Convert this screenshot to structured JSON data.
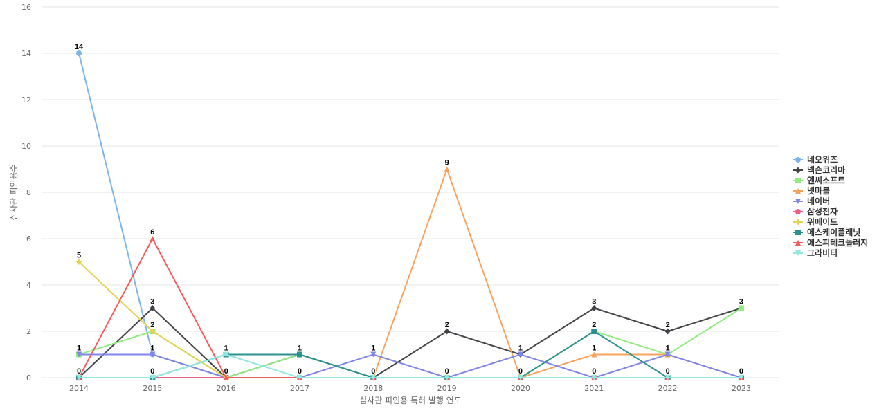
{
  "chart_data": {
    "type": "line",
    "xlabel": "심사관 피인용 특허 발행 연도",
    "ylabel": "심사관 피인용수",
    "categories": [
      "2014",
      "2015",
      "2016",
      "2017",
      "2018",
      "2019",
      "2020",
      "2021",
      "2022",
      "2023"
    ],
    "ylim": [
      0,
      16
    ],
    "yticks": [
      0,
      2,
      4,
      6,
      8,
      10,
      12,
      14,
      16
    ],
    "grid": true,
    "legend_position": "right",
    "series": [
      {
        "name": "네오위즈",
        "color": "#7cb5ec",
        "marker": "circle",
        "values": [
          14,
          1,
          0,
          0,
          0,
          0,
          0,
          0,
          0,
          0
        ]
      },
      {
        "name": "넥슨코리아",
        "color": "#434348",
        "marker": "diamond",
        "values": [
          0,
          3,
          0,
          1,
          0,
          2,
          1,
          3,
          2,
          3
        ]
      },
      {
        "name": "엔씨소프트",
        "color": "#90ed7d",
        "marker": "square",
        "values": [
          1,
          2,
          0,
          1,
          0,
          0,
          0,
          2,
          1,
          3
        ]
      },
      {
        "name": "넷마블",
        "color": "#f7a35c",
        "marker": "triangle",
        "values": [
          0,
          0,
          0,
          0,
          0,
          9,
          0,
          1,
          1,
          0
        ]
      },
      {
        "name": "네이버",
        "color": "#8085e9",
        "marker": "triangle-down",
        "values": [
          1,
          1,
          0,
          0,
          1,
          0,
          1,
          0,
          1,
          0
        ]
      },
      {
        "name": "삼성전자",
        "color": "#f15c80",
        "marker": "circle",
        "values": [
          0,
          0,
          0,
          0,
          0,
          0,
          0,
          0,
          0,
          0
        ]
      },
      {
        "name": "위메이드",
        "color": "#e4d354",
        "marker": "diamond",
        "values": [
          5,
          2,
          0,
          0,
          0,
          0,
          0,
          0,
          0,
          0
        ]
      },
      {
        "name": "에스케이플래닛",
        "color": "#2b908f",
        "marker": "square",
        "values": [
          0,
          0,
          1,
          1,
          0,
          0,
          0,
          2,
          0,
          0
        ]
      },
      {
        "name": "에스피테크놀러지",
        "color": "#f45b5b",
        "marker": "triangle",
        "values": [
          0,
          6,
          0,
          0,
          0,
          0,
          0,
          0,
          0,
          0
        ]
      },
      {
        "name": "그라비티",
        "color": "#91e8e1",
        "marker": "triangle-down",
        "values": [
          0,
          0,
          1,
          0,
          0,
          0,
          0,
          0,
          0,
          0
        ]
      }
    ],
    "data_labels": [
      {
        "x": "2014",
        "y": 14,
        "text": "14"
      },
      {
        "x": "2014",
        "y": 5,
        "text": "5"
      },
      {
        "x": "2014",
        "y": 1,
        "text": "1"
      },
      {
        "x": "2014",
        "y": 0,
        "text": "0"
      },
      {
        "x": "2015",
        "y": 6,
        "text": "6"
      },
      {
        "x": "2015",
        "y": 3,
        "text": "3"
      },
      {
        "x": "2015",
        "y": 2,
        "text": "2"
      },
      {
        "x": "2015",
        "y": 1,
        "text": "1"
      },
      {
        "x": "2015",
        "y": 0,
        "text": "0"
      },
      {
        "x": "2016",
        "y": 1,
        "text": "1"
      },
      {
        "x": "2016",
        "y": 0,
        "text": "0"
      },
      {
        "x": "2017",
        "y": 1,
        "text": "1"
      },
      {
        "x": "2017",
        "y": 0,
        "text": "0"
      },
      {
        "x": "2018",
        "y": 1,
        "text": "1"
      },
      {
        "x": "2018",
        "y": 0,
        "text": "0"
      },
      {
        "x": "2019",
        "y": 9,
        "text": "9"
      },
      {
        "x": "2019",
        "y": 2,
        "text": "2"
      },
      {
        "x": "2019",
        "y": 0,
        "text": "0"
      },
      {
        "x": "2020",
        "y": 1,
        "text": "1"
      },
      {
        "x": "2020",
        "y": 0,
        "text": "0"
      },
      {
        "x": "2021",
        "y": 3,
        "text": "3"
      },
      {
        "x": "2021",
        "y": 2,
        "text": "2"
      },
      {
        "x": "2021",
        "y": 1,
        "text": "1"
      },
      {
        "x": "2021",
        "y": 0,
        "text": "0"
      },
      {
        "x": "2022",
        "y": 2,
        "text": "2"
      },
      {
        "x": "2022",
        "y": 1,
        "text": "1"
      },
      {
        "x": "2022",
        "y": 0,
        "text": "0"
      },
      {
        "x": "2023",
        "y": 3,
        "text": "3"
      },
      {
        "x": "2023",
        "y": 0,
        "text": "0"
      }
    ]
  }
}
